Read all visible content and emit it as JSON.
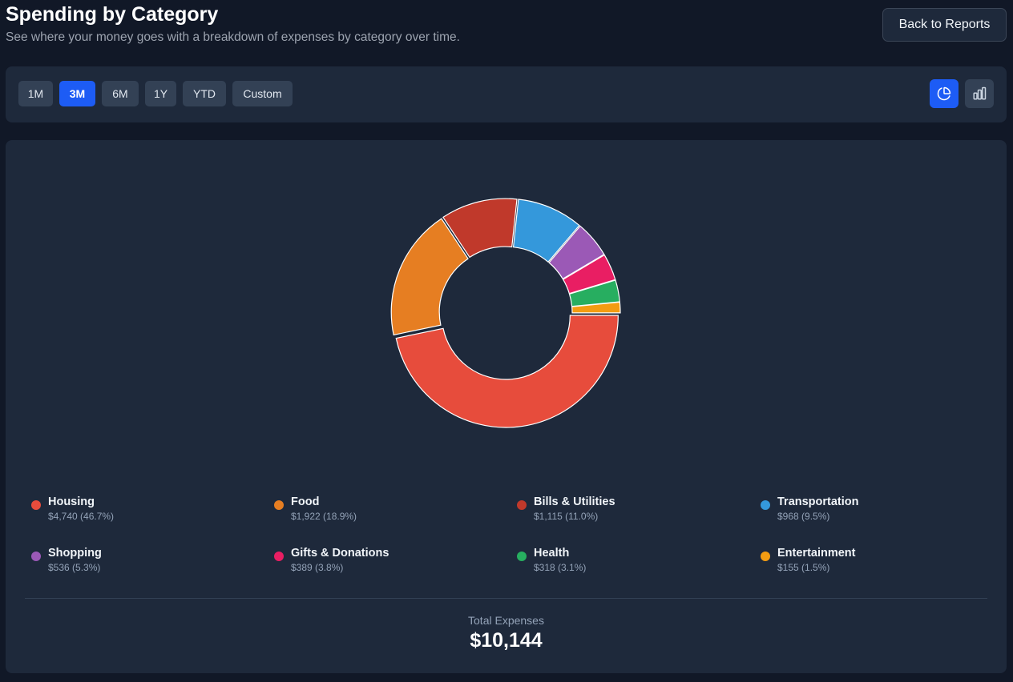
{
  "header": {
    "title": "Spending by Category",
    "subtitle": "See where your money goes with a breakdown of expenses by category over time.",
    "back_label": "Back to Reports"
  },
  "filters": {
    "ranges": [
      "1M",
      "3M",
      "6M",
      "1Y",
      "YTD",
      "Custom"
    ],
    "active_range": "3M",
    "views": [
      {
        "icon": "pie-chart-icon",
        "active": true
      },
      {
        "icon": "bar-chart-icon",
        "active": false
      }
    ]
  },
  "colors": {
    "accent": "#1d5cf5",
    "housing": "#e74c3c",
    "food": "#e67e22",
    "bills": "#c0392b",
    "transportation": "#3498db",
    "shopping": "#9b59b6",
    "gifts": "#e91e63",
    "health": "#27ae60",
    "entertainment": "#f39c12"
  },
  "chart_data": {
    "type": "pie",
    "donut": true,
    "categories": [
      "Housing",
      "Food",
      "Bills & Utilities",
      "Transportation",
      "Shopping",
      "Gifts & Donations",
      "Health",
      "Entertainment"
    ],
    "values": [
      4740,
      1922,
      1115,
      968,
      536,
      389,
      318,
      155
    ],
    "percent_labels": [
      "46.7%",
      "18.9%",
      "11.0%",
      "9.5%",
      "5.3%",
      "3.8%",
      "3.1%",
      "1.5%"
    ],
    "colors": [
      "#e74c3c",
      "#e67e22",
      "#c0392b",
      "#3498db",
      "#9b59b6",
      "#e91e63",
      "#27ae60",
      "#f39c12"
    ],
    "title": "",
    "xlabel": "",
    "ylabel": ""
  },
  "legend": [
    {
      "name": "Housing",
      "value": "$4,740 (46.7%)"
    },
    {
      "name": "Food",
      "value": "$1,922 (18.9%)"
    },
    {
      "name": "Bills & Utilities",
      "value": "$1,115 (11.0%)"
    },
    {
      "name": "Transportation",
      "value": "$968 (9.5%)"
    },
    {
      "name": "Shopping",
      "value": "$536 (5.3%)"
    },
    {
      "name": "Gifts & Donations",
      "value": "$389 (3.8%)"
    },
    {
      "name": "Health",
      "value": "$318 (3.1%)"
    },
    {
      "name": "Entertainment",
      "value": "$155 (1.5%)"
    }
  ],
  "total": {
    "label": "Total Expenses",
    "value": "$10,144"
  }
}
